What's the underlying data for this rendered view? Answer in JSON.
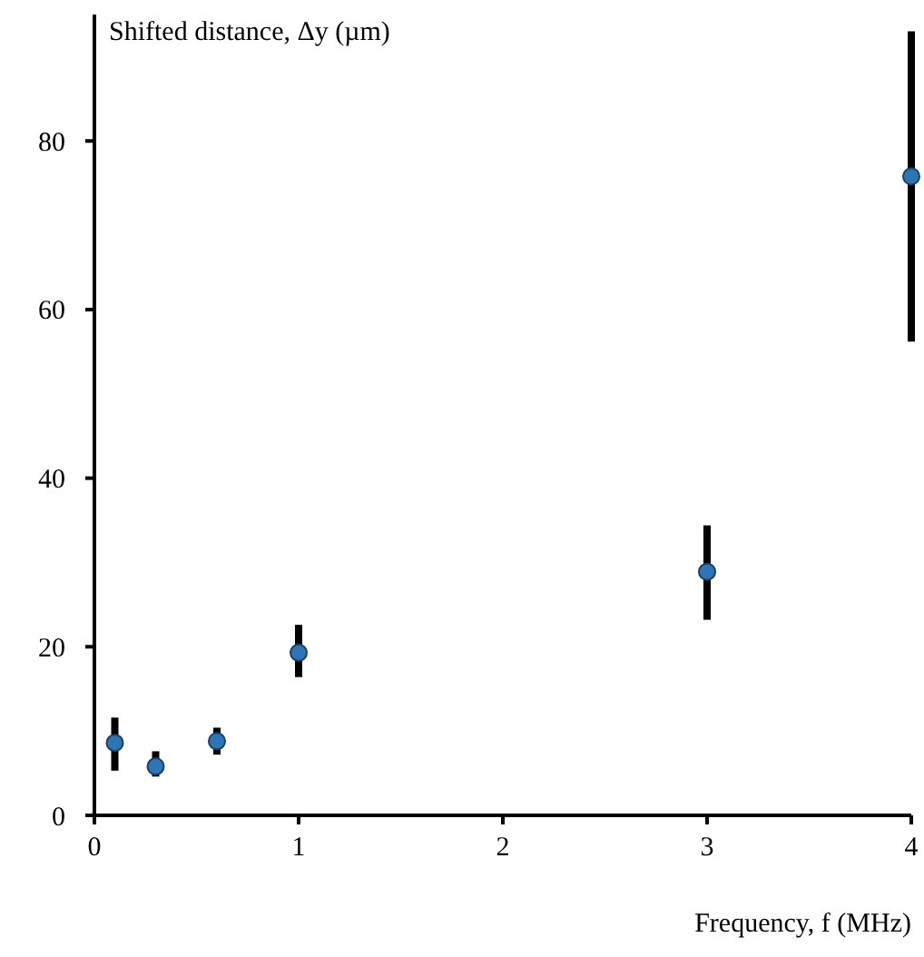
{
  "chart_data": {
    "type": "scatter",
    "xlabel": "Frequency, f (MHz)",
    "ylabel": "Shifted distance, Δy (µm)",
    "x": [
      0.1,
      0.3,
      0.6,
      1,
      3,
      4
    ],
    "values": [
      8.6,
      5.8,
      8.8,
      19.3,
      28.9,
      75.8
    ],
    "errors": [
      [
        5.3,
        11.6
      ],
      [
        4.6,
        7.6
      ],
      [
        7.2,
        10.4
      ],
      [
        16.4,
        22.6
      ],
      [
        23.2,
        34.4
      ],
      [
        56.2,
        93
      ]
    ],
    "color": "#2e75b6",
    "marker": "circle",
    "xlim": [
      0,
      4
    ],
    "xticks": [
      0,
      1,
      2,
      3,
      4
    ],
    "ylim": [
      0,
      95
    ],
    "yticks": [
      0,
      20,
      40,
      60,
      80
    ],
    "grid": false
  }
}
